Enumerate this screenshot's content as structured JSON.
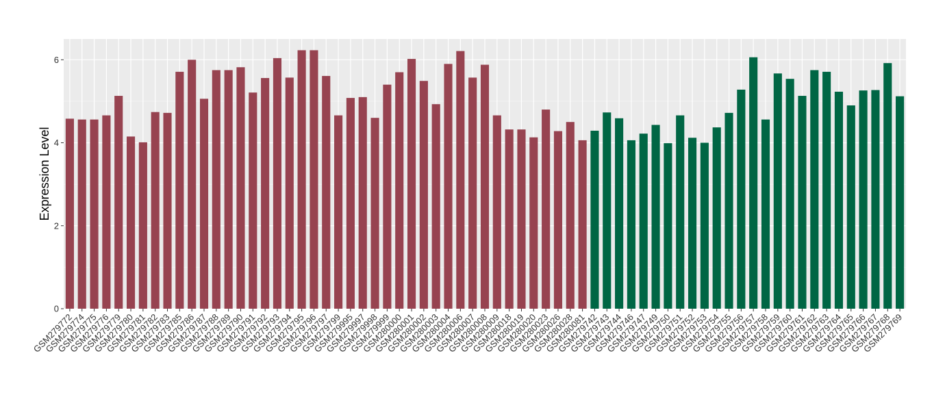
{
  "chart_data": {
    "type": "bar",
    "title": "",
    "xlabel": "",
    "ylabel": "Expression Level",
    "ylim": [
      0,
      6.5
    ],
    "yticks": [
      0,
      2,
      4,
      6
    ],
    "grid": true,
    "legend": "none",
    "background": "#ebebeb",
    "gridline_color": "#ffffff",
    "group_colors": {
      "group1": "#974350",
      "group2": "#006644"
    },
    "categories": [
      "GSM279772",
      "GSM279774",
      "GSM279775",
      "GSM279776",
      "GSM279779",
      "GSM279780",
      "GSM279781",
      "GSM279782",
      "GSM279783",
      "GSM279785",
      "GSM279786",
      "GSM279787",
      "GSM279788",
      "GSM279789",
      "GSM279790",
      "GSM279791",
      "GSM279792",
      "GSM279793",
      "GSM279794",
      "GSM279795",
      "GSM279796",
      "GSM279797",
      "GSM279799",
      "GSM279995",
      "GSM279997",
      "GSM279998",
      "GSM279999",
      "GSM280000",
      "GSM280001",
      "GSM280002",
      "GSM280003",
      "GSM280004",
      "GSM280006",
      "GSM280007",
      "GSM280008",
      "GSM280009",
      "GSM280018",
      "GSM280019",
      "GSM280020",
      "GSM280023",
      "GSM280026",
      "GSM280028",
      "GSM280081",
      "GSM279742",
      "GSM279743",
      "GSM279744",
      "GSM279746",
      "GSM279747",
      "GSM279749",
      "GSM279750",
      "GSM279751",
      "GSM279752",
      "GSM279753",
      "GSM279754",
      "GSM279755",
      "GSM279756",
      "GSM279757",
      "GSM279758",
      "GSM279759",
      "GSM279760",
      "GSM279761",
      "GSM279762",
      "GSM279763",
      "GSM279764",
      "GSM279765",
      "GSM279766",
      "GSM279767",
      "GSM279768",
      "GSM279769"
    ],
    "values": [
      4.58,
      4.56,
      4.56,
      4.66,
      5.13,
      4.15,
      4.01,
      4.74,
      4.72,
      5.71,
      6.0,
      5.06,
      5.75,
      5.75,
      5.82,
      5.21,
      5.56,
      6.04,
      5.57,
      6.23,
      6.23,
      5.61,
      4.66,
      5.08,
      5.1,
      4.6,
      5.4,
      5.7,
      6.02,
      5.49,
      4.93,
      5.9,
      6.21,
      5.57,
      5.88,
      4.66,
      4.32,
      4.32,
      4.13,
      4.8,
      4.28,
      4.5,
      4.06,
      4.29,
      4.73,
      4.59,
      4.06,
      4.22,
      4.43,
      3.99,
      4.66,
      4.12,
      4.0,
      4.37,
      4.72,
      5.28,
      6.06,
      4.56,
      5.67,
      5.54,
      5.13,
      5.75,
      5.71,
      5.23,
      4.9,
      5.26,
      5.27,
      5.92,
      5.12
    ],
    "groups": [
      "group1",
      "group1",
      "group1",
      "group1",
      "group1",
      "group1",
      "group1",
      "group1",
      "group1",
      "group1",
      "group1",
      "group1",
      "group1",
      "group1",
      "group1",
      "group1",
      "group1",
      "group1",
      "group1",
      "group1",
      "group1",
      "group1",
      "group1",
      "group1",
      "group1",
      "group1",
      "group1",
      "group1",
      "group1",
      "group1",
      "group1",
      "group1",
      "group1",
      "group1",
      "group1",
      "group1",
      "group1",
      "group1",
      "group1",
      "group1",
      "group1",
      "group1",
      "group1",
      "group2",
      "group2",
      "group2",
      "group2",
      "group2",
      "group2",
      "group2",
      "group2",
      "group2",
      "group2",
      "group2",
      "group2",
      "group2",
      "group2",
      "group2",
      "group2",
      "group2",
      "group2",
      "group2",
      "group2",
      "group2",
      "group2",
      "group2",
      "group2",
      "group2",
      "group2"
    ]
  }
}
